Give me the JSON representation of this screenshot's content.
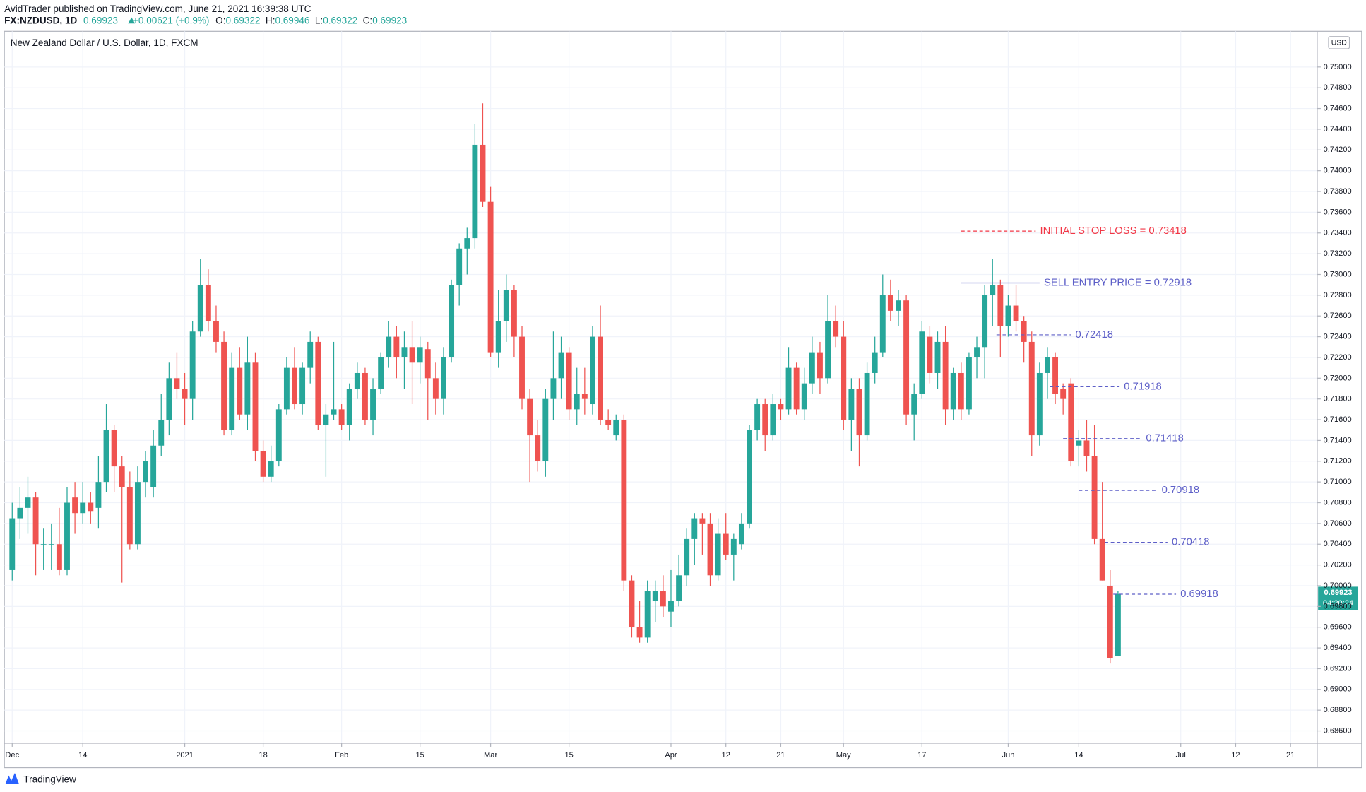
{
  "header": {
    "publisher": "AvidTrader published on TradingView.com, June 21, 2021 16:39:38 UTC",
    "symbol": "FX:NZDUSD, 1D",
    "price": "0.69923",
    "change": "+0.00621 (+0.9%)",
    "ohlc": [
      {
        "label": "O:",
        "value": "0.69322"
      },
      {
        "label": "H:",
        "value": "0.69946"
      },
      {
        "label": "L:",
        "value": "0.69322"
      },
      {
        "label": "C:",
        "value": "0.69923"
      }
    ]
  },
  "footer": {
    "brand": "TradingView"
  },
  "chart_data": {
    "type": "candlestick",
    "title": "New Zealand Dollar / U.S. Dollar, 1D, FXCM",
    "currency": "USD",
    "up_color": "#26a69a",
    "down_color": "#ef5350",
    "grid": true,
    "xlim": [
      -1,
      166.4
    ],
    "ylim": [
      0.68481,
      0.75344
    ],
    "xticks": [
      {
        "value": 0,
        "label": "Dec"
      },
      {
        "value": 9,
        "label": "14"
      },
      {
        "value": 22,
        "label": "2021"
      },
      {
        "value": 32,
        "label": "18"
      },
      {
        "value": 42,
        "label": "Feb"
      },
      {
        "value": 52,
        "label": "15"
      },
      {
        "value": 61,
        "label": "Mar"
      },
      {
        "value": 71,
        "label": "15"
      },
      {
        "value": 84,
        "label": "Apr"
      },
      {
        "value": 91,
        "label": "12"
      },
      {
        "value": 98,
        "label": "21"
      },
      {
        "value": 106,
        "label": "May"
      },
      {
        "value": 116,
        "label": "17"
      },
      {
        "value": 127,
        "label": "Jun"
      },
      {
        "value": 136,
        "label": "14"
      },
      {
        "value": 149,
        "label": "Jul"
      },
      {
        "value": 156,
        "label": "12"
      },
      {
        "value": 163,
        "label": "21"
      }
    ],
    "yticks": [
      {
        "value": 0.686,
        "label": "0.68600"
      },
      {
        "value": 0.688,
        "label": "0.68800"
      },
      {
        "value": 0.69,
        "label": "0.69000"
      },
      {
        "value": 0.692,
        "label": "0.69200"
      },
      {
        "value": 0.694,
        "label": "0.69400"
      },
      {
        "value": 0.696,
        "label": "0.69600"
      },
      {
        "value": 0.698,
        "label": "0.69800"
      },
      {
        "value": 0.7,
        "label": "0.70000"
      },
      {
        "value": 0.702,
        "label": "0.70200"
      },
      {
        "value": 0.704,
        "label": "0.70400"
      },
      {
        "value": 0.706,
        "label": "0.70600"
      },
      {
        "value": 0.708,
        "label": "0.70800"
      },
      {
        "value": 0.71,
        "label": "0.71000"
      },
      {
        "value": 0.712,
        "label": "0.71200"
      },
      {
        "value": 0.714,
        "label": "0.71400"
      },
      {
        "value": 0.716,
        "label": "0.71600"
      },
      {
        "value": 0.718,
        "label": "0.71800"
      },
      {
        "value": 0.72,
        "label": "0.72000"
      },
      {
        "value": 0.722,
        "label": "0.72200"
      },
      {
        "value": 0.724,
        "label": "0.72400"
      },
      {
        "value": 0.726,
        "label": "0.72600"
      },
      {
        "value": 0.728,
        "label": "0.72800"
      },
      {
        "value": 0.73,
        "label": "0.73000"
      },
      {
        "value": 0.732,
        "label": "0.73200"
      },
      {
        "value": 0.734,
        "label": "0.73400"
      },
      {
        "value": 0.736,
        "label": "0.73600"
      },
      {
        "value": 0.738,
        "label": "0.73800"
      },
      {
        "value": 0.74,
        "label": "0.74000"
      },
      {
        "value": 0.742,
        "label": "0.74200"
      },
      {
        "value": 0.744,
        "label": "0.74400"
      },
      {
        "value": 0.746,
        "label": "0.74600"
      },
      {
        "value": 0.748,
        "label": "0.74800"
      },
      {
        "value": 0.75,
        "label": "0.75000"
      }
    ],
    "candles": [
      [
        0.7015,
        0.708,
        0.7005,
        0.7065
      ],
      [
        0.7065,
        0.7095,
        0.7045,
        0.7075
      ],
      [
        0.7075,
        0.7105,
        0.705,
        0.7085
      ],
      [
        0.7085,
        0.709,
        0.701,
        0.704
      ],
      [
        0.704,
        0.7055,
        0.7015,
        0.704
      ],
      [
        0.704,
        0.706,
        0.7015,
        0.704
      ],
      [
        0.704,
        0.7075,
        0.701,
        0.7015
      ],
      [
        0.7015,
        0.7095,
        0.701,
        0.708
      ],
      [
        0.7085,
        0.71,
        0.705,
        0.707
      ],
      [
        0.707,
        0.71,
        0.706,
        0.708
      ],
      [
        0.708,
        0.709,
        0.706,
        0.7072
      ],
      [
        0.7075,
        0.7125,
        0.7055,
        0.71
      ],
      [
        0.71,
        0.7175,
        0.709,
        0.715
      ],
      [
        0.715,
        0.7155,
        0.709,
        0.7115
      ],
      [
        0.7115,
        0.7125,
        0.7003,
        0.7095
      ],
      [
        0.7095,
        0.711,
        0.7035,
        0.704
      ],
      [
        0.704,
        0.7115,
        0.7035,
        0.71
      ],
      [
        0.71,
        0.713,
        0.7085,
        0.712
      ],
      [
        0.7095,
        0.715,
        0.7085,
        0.7135
      ],
      [
        0.7135,
        0.7185,
        0.7125,
        0.716
      ],
      [
        0.716,
        0.7215,
        0.7145,
        0.72
      ],
      [
        0.72,
        0.7225,
        0.718,
        0.719
      ],
      [
        0.719,
        0.7205,
        0.7155,
        0.718
      ],
      [
        0.718,
        0.7255,
        0.716,
        0.7245
      ],
      [
        0.7245,
        0.7315,
        0.724,
        0.729
      ],
      [
        0.729,
        0.7305,
        0.7245,
        0.7255
      ],
      [
        0.7255,
        0.727,
        0.7225,
        0.7235
      ],
      [
        0.7235,
        0.7245,
        0.7145,
        0.715
      ],
      [
        0.715,
        0.7225,
        0.7145,
        0.721
      ],
      [
        0.721,
        0.723,
        0.716,
        0.7165
      ],
      [
        0.7165,
        0.724,
        0.715,
        0.7215
      ],
      [
        0.7215,
        0.7225,
        0.712,
        0.713
      ],
      [
        0.713,
        0.714,
        0.71,
        0.7105
      ],
      [
        0.7105,
        0.7135,
        0.71,
        0.712
      ],
      [
        0.712,
        0.7175,
        0.7115,
        0.717
      ],
      [
        0.717,
        0.722,
        0.7165,
        0.721
      ],
      [
        0.721,
        0.723,
        0.717,
        0.7175
      ],
      [
        0.7175,
        0.7215,
        0.7165,
        0.721
      ],
      [
        0.721,
        0.7245,
        0.7195,
        0.7235
      ],
      [
        0.7235,
        0.724,
        0.715,
        0.7155
      ],
      [
        0.7155,
        0.7175,
        0.7105,
        0.7165
      ],
      [
        0.7165,
        0.7235,
        0.716,
        0.717
      ],
      [
        0.717,
        0.7175,
        0.715,
        0.7155
      ],
      [
        0.7155,
        0.7195,
        0.714,
        0.719
      ],
      [
        0.719,
        0.7215,
        0.718,
        0.7205
      ],
      [
        0.7205,
        0.721,
        0.7155,
        0.716
      ],
      [
        0.716,
        0.72,
        0.7145,
        0.719
      ],
      [
        0.719,
        0.7225,
        0.7185,
        0.722
      ],
      [
        0.722,
        0.7255,
        0.721,
        0.724
      ],
      [
        0.724,
        0.725,
        0.72,
        0.722
      ],
      [
        0.722,
        0.7245,
        0.719,
        0.723
      ],
      [
        0.723,
        0.7255,
        0.7175,
        0.7215
      ],
      [
        0.7215,
        0.724,
        0.7195,
        0.723
      ],
      [
        0.7228,
        0.7235,
        0.716,
        0.72
      ],
      [
        0.72,
        0.7215,
        0.7165,
        0.718
      ],
      [
        0.718,
        0.723,
        0.7165,
        0.722
      ],
      [
        0.722,
        0.7295,
        0.7215,
        0.729
      ],
      [
        0.729,
        0.733,
        0.727,
        0.7325
      ],
      [
        0.7325,
        0.7345,
        0.73,
        0.7335
      ],
      [
        0.7335,
        0.7445,
        0.7325,
        0.7425
      ],
      [
        0.7425,
        0.7465,
        0.7365,
        0.737
      ],
      [
        0.737,
        0.7385,
        0.722,
        0.7225
      ],
      [
        0.7225,
        0.7285,
        0.721,
        0.7255
      ],
      [
        0.7255,
        0.73,
        0.7235,
        0.7285
      ],
      [
        0.7285,
        0.729,
        0.722,
        0.724
      ],
      [
        0.724,
        0.725,
        0.717,
        0.718
      ],
      [
        0.718,
        0.719,
        0.71,
        0.7145
      ],
      [
        0.7145,
        0.716,
        0.711,
        0.712
      ],
      [
        0.712,
        0.719,
        0.7105,
        0.718
      ],
      [
        0.718,
        0.7245,
        0.716,
        0.72
      ],
      [
        0.72,
        0.724,
        0.718,
        0.7225
      ],
      [
        0.7225,
        0.723,
        0.716,
        0.717
      ],
      [
        0.717,
        0.721,
        0.7155,
        0.7185
      ],
      [
        0.7185,
        0.721,
        0.7165,
        0.718
      ],
      [
        0.7175,
        0.725,
        0.7165,
        0.724
      ],
      [
        0.724,
        0.727,
        0.7155,
        0.716
      ],
      [
        0.716,
        0.717,
        0.715,
        0.7155
      ],
      [
        0.7145,
        0.7165,
        0.714,
        0.716
      ],
      [
        0.716,
        0.7165,
        0.6995,
        0.7005
      ],
      [
        0.7005,
        0.701,
        0.695,
        0.696
      ],
      [
        0.696,
        0.6985,
        0.6945,
        0.695
      ],
      [
        0.695,
        0.7005,
        0.6945,
        0.6995
      ],
      [
        0.6985,
        0.7005,
        0.6965,
        0.6995
      ],
      [
        0.6995,
        0.701,
        0.697,
        0.698
      ],
      [
        0.6975,
        0.7015,
        0.696,
        0.6985
      ],
      [
        0.6985,
        0.703,
        0.698,
        0.701
      ],
      [
        0.701,
        0.7055,
        0.7,
        0.7045
      ],
      [
        0.7045,
        0.707,
        0.702,
        0.7065
      ],
      [
        0.7065,
        0.707,
        0.703,
        0.706
      ],
      [
        0.706,
        0.707,
        0.7,
        0.701
      ],
      [
        0.701,
        0.7065,
        0.7005,
        0.705
      ],
      [
        0.705,
        0.707,
        0.7025,
        0.703
      ],
      [
        0.703,
        0.705,
        0.7005,
        0.7045
      ],
      [
        0.704,
        0.707,
        0.7035,
        0.706
      ],
      [
        0.706,
        0.7155,
        0.7055,
        0.715
      ],
      [
        0.715,
        0.718,
        0.714,
        0.7175
      ],
      [
        0.7175,
        0.718,
        0.713,
        0.7145
      ],
      [
        0.7145,
        0.7185,
        0.714,
        0.7175
      ],
      [
        0.7175,
        0.718,
        0.716,
        0.717
      ],
      [
        0.717,
        0.723,
        0.7165,
        0.721
      ],
      [
        0.721,
        0.7215,
        0.7165,
        0.717
      ],
      [
        0.717,
        0.721,
        0.716,
        0.7195
      ],
      [
        0.7195,
        0.724,
        0.7185,
        0.7225
      ],
      [
        0.7225,
        0.7235,
        0.7185,
        0.72
      ],
      [
        0.72,
        0.728,
        0.7195,
        0.7255
      ],
      [
        0.7255,
        0.727,
        0.723,
        0.724
      ],
      [
        0.724,
        0.7255,
        0.715,
        0.716
      ],
      [
        0.716,
        0.72,
        0.713,
        0.719
      ],
      [
        0.719,
        0.72,
        0.7115,
        0.7145
      ],
      [
        0.7145,
        0.7215,
        0.714,
        0.7205
      ],
      [
        0.7205,
        0.724,
        0.7195,
        0.7225
      ],
      [
        0.7225,
        0.73,
        0.722,
        0.728
      ],
      [
        0.728,
        0.7295,
        0.7255,
        0.7265
      ],
      [
        0.7265,
        0.7285,
        0.725,
        0.7275
      ],
      [
        0.7275,
        0.728,
        0.7155,
        0.7165
      ],
      [
        0.7165,
        0.7195,
        0.714,
        0.7185
      ],
      [
        0.7185,
        0.7255,
        0.718,
        0.7245
      ],
      [
        0.724,
        0.725,
        0.7195,
        0.7205
      ],
      [
        0.7205,
        0.7245,
        0.719,
        0.7235
      ],
      [
        0.7235,
        0.725,
        0.7155,
        0.717
      ],
      [
        0.717,
        0.721,
        0.716,
        0.7205
      ],
      [
        0.7205,
        0.7215,
        0.716,
        0.717
      ],
      [
        0.717,
        0.7225,
        0.7165,
        0.722
      ],
      [
        0.722,
        0.724,
        0.72,
        0.723
      ],
      [
        0.723,
        0.729,
        0.72,
        0.728
      ],
      [
        0.728,
        0.7315,
        0.725,
        0.729
      ],
      [
        0.729,
        0.7295,
        0.722,
        0.725
      ],
      [
        0.725,
        0.728,
        0.724,
        0.727
      ],
      [
        0.727,
        0.729,
        0.7245,
        0.7255
      ],
      [
        0.7255,
        0.726,
        0.7215,
        0.7235
      ],
      [
        0.7235,
        0.7245,
        0.7125,
        0.7145
      ],
      [
        0.7145,
        0.7215,
        0.7135,
        0.7205
      ],
      [
        0.7205,
        0.723,
        0.718,
        0.722
      ],
      [
        0.722,
        0.7225,
        0.7175,
        0.7185
      ],
      [
        0.719,
        0.7195,
        0.7165,
        0.718
      ],
      [
        0.7195,
        0.72,
        0.7115,
        0.712
      ],
      [
        0.7135,
        0.715,
        0.7115,
        0.714
      ],
      [
        0.714,
        0.716,
        0.711,
        0.7125
      ],
      [
        0.7125,
        0.7155,
        0.704,
        0.7045
      ],
      [
        0.7045,
        0.71,
        0.7005,
        0.7005
      ],
      [
        0.7,
        0.7015,
        0.6925,
        0.693
      ],
      [
        0.6932,
        0.6995,
        0.6932,
        0.6992
      ]
    ],
    "annotations": [
      {
        "label": "INITIAL STOP LOSS = 0.73418",
        "value": 0.73418,
        "from": 121,
        "to": 130.5,
        "color": "#f23645",
        "style": "dashed"
      },
      {
        "label": "SELL ENTRY PRICE = 0.72918",
        "value": 0.72918,
        "from": 121,
        "to": 131,
        "color": "#5d5fc8",
        "style": "solid"
      },
      {
        "value": 0.72418,
        "from": 125.5,
        "to": 135,
        "color": "#5d5fc8",
        "style": "dashed"
      },
      {
        "value": 0.71918,
        "from": 132.3,
        "to": 141.2,
        "color": "#5d5fc8",
        "style": "dashed"
      },
      {
        "value": 0.71418,
        "from": 134,
        "to": 144,
        "color": "#5d5fc8",
        "style": "dashed"
      },
      {
        "value": 0.70918,
        "from": 136,
        "to": 146,
        "color": "#5d5fc8",
        "style": "dashed"
      },
      {
        "value": 0.70418,
        "from": 139.3,
        "to": 147.3,
        "color": "#5d5fc8",
        "style": "dashed"
      },
      {
        "value": 0.69918,
        "from": 140.4,
        "to": 148.4,
        "color": "#5d5fc8",
        "style": "dashed"
      }
    ],
    "last_price": {
      "value": 0.69923,
      "countdown": "04:20:24",
      "color": "#26a69a"
    }
  }
}
